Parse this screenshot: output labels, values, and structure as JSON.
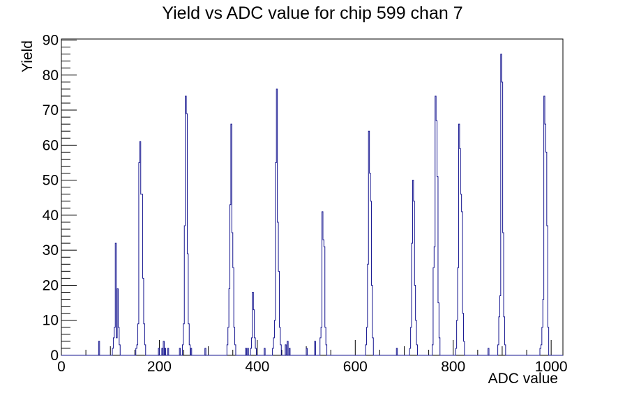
{
  "title": "Yield vs ADC value for chip 599 chan 7",
  "chart_data": {
    "type": "bar",
    "style": "root-step-outline-histogram",
    "title": "Yield vs ADC value for chip 599 chan 7",
    "xlabel": "ADC value",
    "ylabel": "Yield",
    "xlim": [
      0,
      1024
    ],
    "ylim": [
      0,
      90.3
    ],
    "x_major_ticks": [
      0,
      200,
      400,
      600,
      800,
      1000
    ],
    "x_mid_step": 100,
    "x_minor_step": 50,
    "y_major_ticks": [
      0,
      10,
      20,
      30,
      40,
      50,
      60,
      70,
      80,
      90
    ],
    "y_minor_step": 2,
    "grid": false,
    "legend": null,
    "bin_width": 2,
    "line_color": "#14148f",
    "axis_color": "#000000",
    "background": "#ffffff",
    "bins": [
      [
        76,
        4
      ],
      [
        104,
        2
      ],
      [
        106,
        5
      ],
      [
        108,
        8
      ],
      [
        110,
        32
      ],
      [
        112,
        5
      ],
      [
        114,
        19
      ],
      [
        116,
        8
      ],
      [
        118,
        3
      ],
      [
        152,
        2
      ],
      [
        154,
        3
      ],
      [
        156,
        9
      ],
      [
        158,
        55
      ],
      [
        160,
        61
      ],
      [
        162,
        46
      ],
      [
        164,
        46
      ],
      [
        166,
        22
      ],
      [
        168,
        9
      ],
      [
        170,
        3
      ],
      [
        198,
        2
      ],
      [
        205,
        2
      ],
      [
        208,
        4
      ],
      [
        211,
        2
      ],
      [
        217,
        2
      ],
      [
        241,
        2
      ],
      [
        247,
        3
      ],
      [
        249,
        9
      ],
      [
        251,
        37
      ],
      [
        253,
        74
      ],
      [
        255,
        69
      ],
      [
        257,
        29
      ],
      [
        259,
        9
      ],
      [
        261,
        3
      ],
      [
        264,
        2
      ],
      [
        293,
        2
      ],
      [
        338,
        3
      ],
      [
        340,
        8
      ],
      [
        342,
        19
      ],
      [
        344,
        43
      ],
      [
        346,
        66
      ],
      [
        348,
        35
      ],
      [
        350,
        25
      ],
      [
        352,
        8
      ],
      [
        354,
        3
      ],
      [
        376,
        2
      ],
      [
        380,
        2
      ],
      [
        386,
        2
      ],
      [
        388,
        5
      ],
      [
        390,
        18
      ],
      [
        392,
        13
      ],
      [
        394,
        5
      ],
      [
        396,
        2
      ],
      [
        414,
        2
      ],
      [
        431,
        2
      ],
      [
        433,
        5
      ],
      [
        435,
        10
      ],
      [
        437,
        55
      ],
      [
        439,
        76
      ],
      [
        441,
        38
      ],
      [
        443,
        24
      ],
      [
        445,
        8
      ],
      [
        447,
        3
      ],
      [
        457,
        3
      ],
      [
        461,
        4
      ],
      [
        465,
        2
      ],
      [
        500,
        2
      ],
      [
        517,
        4
      ],
      [
        528,
        5
      ],
      [
        530,
        8
      ],
      [
        532,
        41
      ],
      [
        534,
        33
      ],
      [
        536,
        31
      ],
      [
        538,
        8
      ],
      [
        540,
        3
      ],
      [
        621,
        3
      ],
      [
        623,
        8
      ],
      [
        625,
        26
      ],
      [
        627,
        64
      ],
      [
        629,
        52
      ],
      [
        631,
        44
      ],
      [
        633,
        20
      ],
      [
        635,
        5
      ],
      [
        684,
        2
      ],
      [
        711,
        2
      ],
      [
        713,
        8
      ],
      [
        715,
        32
      ],
      [
        717,
        50
      ],
      [
        719,
        44
      ],
      [
        721,
        20
      ],
      [
        723,
        10
      ],
      [
        725,
        3
      ],
      [
        757,
        3
      ],
      [
        759,
        25
      ],
      [
        761,
        31
      ],
      [
        763,
        74
      ],
      [
        765,
        67
      ],
      [
        767,
        51
      ],
      [
        769,
        15
      ],
      [
        771,
        5
      ],
      [
        805,
        2
      ],
      [
        807,
        10
      ],
      [
        809,
        25
      ],
      [
        811,
        66
      ],
      [
        813,
        59
      ],
      [
        815,
        46
      ],
      [
        817,
        41
      ],
      [
        819,
        12
      ],
      [
        821,
        4
      ],
      [
        871,
        2
      ],
      [
        891,
        3
      ],
      [
        893,
        11
      ],
      [
        895,
        17
      ],
      [
        897,
        86
      ],
      [
        899,
        78
      ],
      [
        901,
        35
      ],
      [
        903,
        11
      ],
      [
        905,
        3
      ],
      [
        977,
        2
      ],
      [
        979,
        3
      ],
      [
        981,
        8
      ],
      [
        983,
        16
      ],
      [
        985,
        74
      ],
      [
        987,
        66
      ],
      [
        989,
        58
      ],
      [
        991,
        37
      ],
      [
        993,
        8
      ]
    ]
  }
}
